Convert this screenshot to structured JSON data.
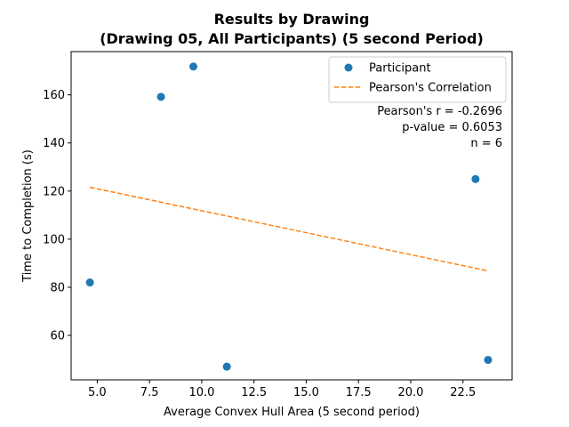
{
  "chart_data": {
    "type": "scatter",
    "title_lines": [
      "Results by Drawing",
      "(Drawing 05, All Participants) (5 second Period)"
    ],
    "xlabel": "Average Convex Hull Area (5 second period)",
    "ylabel": "Time to Completion (s)",
    "xlim": [
      3.75,
      24.85
    ],
    "ylim": [
      41.5,
      178.0
    ],
    "x_ticks": [
      5.0,
      7.5,
      10.0,
      12.5,
      15.0,
      17.5,
      20.0,
      22.5
    ],
    "x_tick_labels": [
      "5.0",
      "7.5",
      "10.0",
      "12.5",
      "15.0",
      "17.5",
      "20.0",
      "22.5"
    ],
    "y_ticks": [
      60,
      80,
      100,
      120,
      140,
      160
    ],
    "y_tick_labels": [
      "60",
      "80",
      "100",
      "120",
      "140",
      "160"
    ],
    "series": [
      {
        "name": "Participant",
        "kind": "scatter",
        "color": "#1f77b4",
        "points": [
          {
            "x": 4.65,
            "y": 82.0
          },
          {
            "x": 8.05,
            "y": 159.2
          },
          {
            "x": 9.6,
            "y": 171.8
          },
          {
            "x": 11.2,
            "y": 47.0
          },
          {
            "x": 23.1,
            "y": 125.0
          },
          {
            "x": 23.7,
            "y": 49.8
          }
        ]
      },
      {
        "name": "Pearson's Correlation",
        "kind": "line",
        "style": "dashed",
        "color": "#ff7f0e",
        "points": [
          {
            "x": 4.65,
            "y": 121.6
          },
          {
            "x": 23.7,
            "y": 86.8
          }
        ]
      }
    ],
    "legend_position": "upper-right",
    "annotations": [
      "Pearson's r = -0.2696",
      "p-value = 0.6053",
      "n = 6"
    ]
  }
}
